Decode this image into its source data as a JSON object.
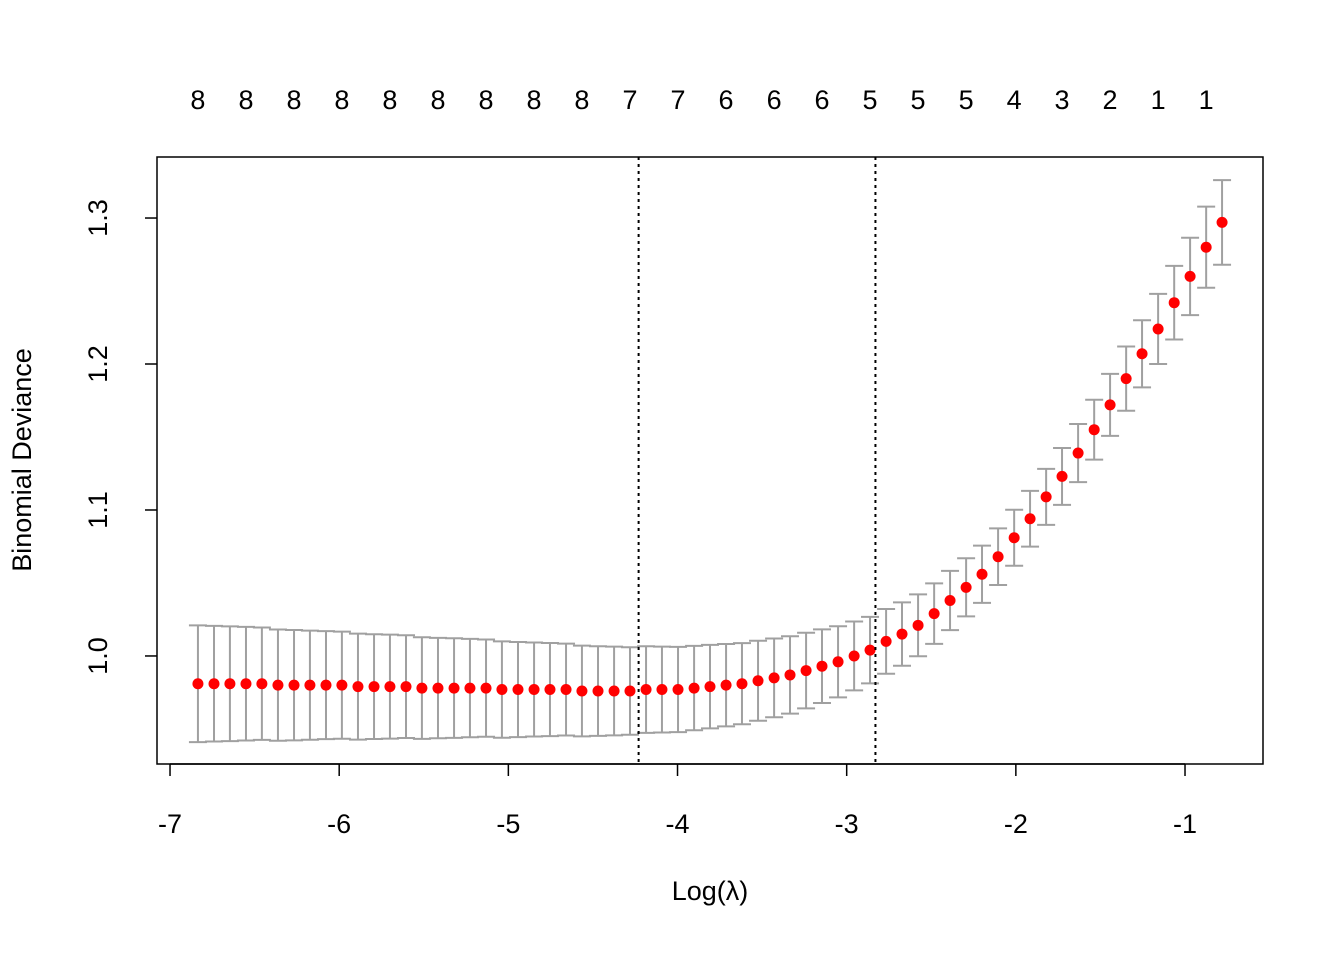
{
  "chart_data": {
    "type": "errorbar",
    "xlabel": "Log(λ)",
    "ylabel": "Binomial Deviance",
    "x": [
      -6.835,
      -6.74,
      -6.646,
      -6.551,
      -6.457,
      -6.362,
      -6.267,
      -6.173,
      -6.078,
      -5.984,
      -5.889,
      -5.794,
      -5.7,
      -5.605,
      -5.511,
      -5.416,
      -5.321,
      -5.227,
      -5.132,
      -5.038,
      -4.943,
      -4.848,
      -4.754,
      -4.659,
      -4.565,
      -4.47,
      -4.375,
      -4.281,
      -4.186,
      -4.092,
      -3.997,
      -3.902,
      -3.808,
      -3.713,
      -3.619,
      -3.524,
      -3.429,
      -3.335,
      -3.24,
      -3.146,
      -3.051,
      -2.956,
      -2.862,
      -2.767,
      -2.673,
      -2.578,
      -2.483,
      -2.389,
      -2.294,
      -2.2,
      -2.105,
      -2.01,
      -1.916,
      -1.821,
      -1.727,
      -1.632,
      -1.537,
      -1.443,
      -1.348,
      -1.254,
      -1.159,
      -1.064,
      -0.97,
      -0.875,
      -0.781
    ],
    "values": [
      0.981,
      0.981,
      0.981,
      0.981,
      0.981,
      0.98,
      0.98,
      0.98,
      0.98,
      0.98,
      0.979,
      0.979,
      0.979,
      0.979,
      0.978,
      0.978,
      0.978,
      0.978,
      0.978,
      0.977,
      0.977,
      0.977,
      0.977,
      0.977,
      0.976,
      0.976,
      0.976,
      0.976,
      0.977,
      0.977,
      0.977,
      0.978,
      0.979,
      0.98,
      0.981,
      0.983,
      0.985,
      0.987,
      0.99,
      0.993,
      0.996,
      1.0,
      1.004,
      1.01,
      1.015,
      1.021,
      1.029,
      1.038,
      1.047,
      1.056,
      1.068,
      1.081,
      1.094,
      1.109,
      1.123,
      1.139,
      1.155,
      1.172,
      1.19,
      1.207,
      1.224,
      1.242,
      1.26,
      1.28,
      1.297
    ],
    "errors": [
      0.04,
      0.0396,
      0.0393,
      0.0389,
      0.0385,
      0.0381,
      0.0378,
      0.0374,
      0.037,
      0.0367,
      0.0363,
      0.0359,
      0.0356,
      0.0352,
      0.0348,
      0.0344,
      0.0341,
      0.0337,
      0.0333,
      0.033,
      0.0326,
      0.0322,
      0.0319,
      0.0315,
      0.0311,
      0.0307,
      0.0304,
      0.03,
      0.0297,
      0.0294,
      0.0292,
      0.0289,
      0.0286,
      0.0282,
      0.0278,
      0.0274,
      0.027,
      0.0265,
      0.0259,
      0.0252,
      0.0244,
      0.0236,
      0.0228,
      0.0222,
      0.0217,
      0.0212,
      0.0207,
      0.0203,
      0.0199,
      0.0196,
      0.0194,
      0.0192,
      0.0191,
      0.0192,
      0.0195,
      0.0199,
      0.0205,
      0.0212,
      0.022,
      0.023,
      0.024,
      0.0252,
      0.0265,
      0.0278,
      0.029
    ],
    "color": "#ff0000",
    "error_color": "#a0a0a0",
    "vlines": [
      -4.23,
      -2.83
    ],
    "xlim": [
      -7.077,
      -0.539
    ],
    "ylim": [
      0.926,
      1.3418
    ],
    "xticks": [
      -7,
      -6,
      -5,
      -4,
      -3,
      -2,
      -1
    ],
    "yticks": [
      {
        "value": 1.0,
        "label": "1.0"
      },
      1.1,
      1.2,
      1.3
    ],
    "x2ticks": [
      {
        "value": -6.835,
        "label": "8"
      },
      {
        "value": -6.551,
        "label": "8"
      },
      {
        "value": -6.267,
        "label": "8"
      },
      {
        "value": -5.984,
        "label": "8"
      },
      {
        "value": -5.7,
        "label": "8"
      },
      {
        "value": -5.416,
        "label": "8"
      },
      {
        "value": -5.132,
        "label": "8"
      },
      {
        "value": -4.848,
        "label": "8"
      },
      {
        "value": -4.565,
        "label": "8"
      },
      {
        "value": -4.281,
        "label": "7"
      },
      {
        "value": -3.997,
        "label": "7"
      },
      {
        "value": -3.713,
        "label": "6"
      },
      {
        "value": -3.429,
        "label": "6"
      },
      {
        "value": -3.146,
        "label": "6"
      },
      {
        "value": -2.862,
        "label": "5"
      },
      {
        "value": -2.578,
        "label": "5"
      },
      {
        "value": -2.294,
        "label": "5"
      },
      {
        "value": -2.01,
        "label": "4"
      },
      {
        "value": -1.727,
        "label": "3"
      },
      {
        "value": -1.443,
        "label": "2"
      },
      {
        "value": -1.159,
        "label": "1"
      },
      {
        "value": -0.875,
        "label": "1"
      }
    ]
  }
}
